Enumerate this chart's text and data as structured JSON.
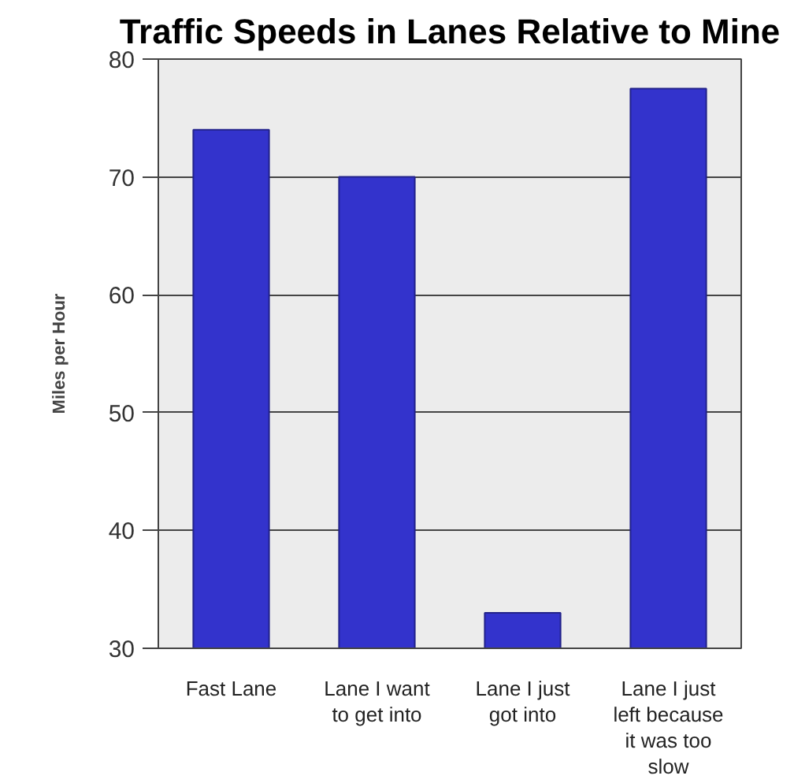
{
  "chart_data": {
    "type": "bar",
    "title": "Traffic Speeds in Lanes Relative to Mine",
    "ylabel": "Miles per Hour",
    "categories": [
      "Fast Lane",
      "Lane I want to get into",
      "Lane I just got into",
      "Lane I just left because it was too slow"
    ],
    "values": [
      74,
      70,
      33,
      77.5
    ],
    "color": "#3333cc",
    "ylim": [
      30,
      80
    ],
    "yticks": [
      30,
      40,
      50,
      60,
      70,
      80
    ],
    "grid": "y"
  }
}
